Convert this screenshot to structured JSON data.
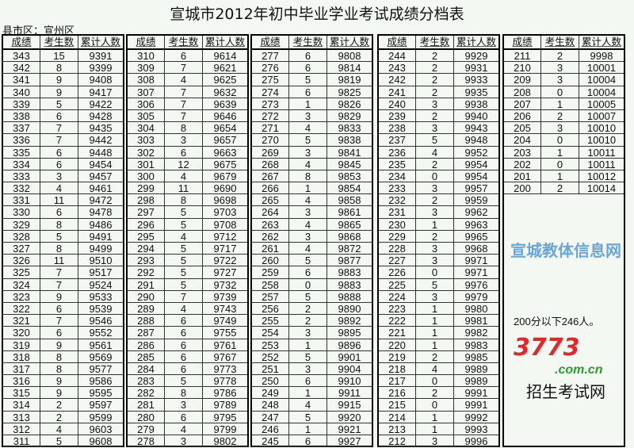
{
  "title": "宣城市2012年初中毕业学业考试成绩分档表",
  "region": "县市区：宣州区",
  "headers": [
    "成绩",
    "考生数",
    "累计人数"
  ],
  "note": "200分以下246人。",
  "watermark": "宣城教体信息网",
  "logo": {
    "number": "3773",
    "domain": ".com.cn",
    "subtitle": "招生考试网"
  },
  "groups": [
    {
      "rows": [
        [
          "343",
          "15",
          "9391"
        ],
        [
          "342",
          "8",
          "9399"
        ],
        [
          "341",
          "9",
          "9408"
        ],
        [
          "340",
          "9",
          "9417"
        ],
        [
          "339",
          "5",
          "9422"
        ],
        [
          "338",
          "6",
          "9428"
        ],
        [
          "337",
          "7",
          "9435"
        ],
        [
          "336",
          "7",
          "9442"
        ],
        [
          "335",
          "6",
          "9448"
        ],
        [
          "334",
          "6",
          "9454"
        ],
        [
          "333",
          "3",
          "9457"
        ],
        [
          "332",
          "4",
          "9461"
        ],
        [
          "331",
          "11",
          "9472"
        ],
        [
          "330",
          "6",
          "9478"
        ],
        [
          "329",
          "8",
          "9486"
        ],
        [
          "328",
          "5",
          "9491"
        ],
        [
          "327",
          "8",
          "9499"
        ],
        [
          "326",
          "11",
          "9510"
        ],
        [
          "325",
          "7",
          "9517"
        ],
        [
          "324",
          "7",
          "9524"
        ],
        [
          "323",
          "9",
          "9533"
        ],
        [
          "322",
          "6",
          "9539"
        ],
        [
          "321",
          "7",
          "9546"
        ],
        [
          "320",
          "6",
          "9552"
        ],
        [
          "319",
          "9",
          "9561"
        ],
        [
          "318",
          "8",
          "9569"
        ],
        [
          "317",
          "8",
          "9577"
        ],
        [
          "316",
          "9",
          "9586"
        ],
        [
          "315",
          "9",
          "9595"
        ],
        [
          "314",
          "2",
          "9597"
        ],
        [
          "313",
          "2",
          "9599"
        ],
        [
          "312",
          "4",
          "9603"
        ],
        [
          "311",
          "5",
          "9608"
        ]
      ]
    },
    {
      "rows": [
        [
          "310",
          "6",
          "9614"
        ],
        [
          "309",
          "7",
          "9621"
        ],
        [
          "308",
          "4",
          "9625"
        ],
        [
          "307",
          "7",
          "9632"
        ],
        [
          "306",
          "7",
          "9639"
        ],
        [
          "305",
          "7",
          "9646"
        ],
        [
          "304",
          "8",
          "9654"
        ],
        [
          "303",
          "3",
          "9657"
        ],
        [
          "302",
          "6",
          "9663"
        ],
        [
          "301",
          "12",
          "9675"
        ],
        [
          "300",
          "4",
          "9679"
        ],
        [
          "299",
          "11",
          "9690"
        ],
        [
          "298",
          "8",
          "9698"
        ],
        [
          "297",
          "5",
          "9703"
        ],
        [
          "296",
          "5",
          "9708"
        ],
        [
          "295",
          "4",
          "9712"
        ],
        [
          "294",
          "5",
          "9717"
        ],
        [
          "293",
          "5",
          "9722"
        ],
        [
          "292",
          "5",
          "9727"
        ],
        [
          "291",
          "5",
          "9732"
        ],
        [
          "290",
          "7",
          "9739"
        ],
        [
          "289",
          "4",
          "9743"
        ],
        [
          "288",
          "6",
          "9749"
        ],
        [
          "287",
          "6",
          "9755"
        ],
        [
          "286",
          "6",
          "9761"
        ],
        [
          "285",
          "6",
          "9767"
        ],
        [
          "284",
          "6",
          "9773"
        ],
        [
          "283",
          "5",
          "9778"
        ],
        [
          "282",
          "8",
          "9786"
        ],
        [
          "281",
          "3",
          "9789"
        ],
        [
          "280",
          "6",
          "9795"
        ],
        [
          "279",
          "4",
          "9799"
        ],
        [
          "278",
          "3",
          "9802"
        ]
      ]
    },
    {
      "rows": [
        [
          "277",
          "6",
          "9808"
        ],
        [
          "276",
          "6",
          "9814"
        ],
        [
          "275",
          "5",
          "9819"
        ],
        [
          "274",
          "6",
          "9825"
        ],
        [
          "273",
          "1",
          "9826"
        ],
        [
          "272",
          "3",
          "9829"
        ],
        [
          "271",
          "4",
          "9833"
        ],
        [
          "270",
          "5",
          "9838"
        ],
        [
          "269",
          "3",
          "9841"
        ],
        [
          "268",
          "4",
          "9845"
        ],
        [
          "267",
          "8",
          "9853"
        ],
        [
          "266",
          "1",
          "9854"
        ],
        [
          "265",
          "4",
          "9858"
        ],
        [
          "264",
          "3",
          "9861"
        ],
        [
          "263",
          "4",
          "9865"
        ],
        [
          "262",
          "3",
          "9868"
        ],
        [
          "261",
          "4",
          "9872"
        ],
        [
          "260",
          "5",
          "9877"
        ],
        [
          "259",
          "6",
          "9883"
        ],
        [
          "258",
          "0",
          "9883"
        ],
        [
          "257",
          "5",
          "9888"
        ],
        [
          "256",
          "2",
          "9890"
        ],
        [
          "255",
          "2",
          "9892"
        ],
        [
          "254",
          "3",
          "9895"
        ],
        [
          "253",
          "1",
          "9896"
        ],
        [
          "252",
          "5",
          "9901"
        ],
        [
          "251",
          "3",
          "9904"
        ],
        [
          "250",
          "6",
          "9910"
        ],
        [
          "249",
          "1",
          "9911"
        ],
        [
          "248",
          "4",
          "9915"
        ],
        [
          "247",
          "5",
          "9920"
        ],
        [
          "246",
          "1",
          "9921"
        ],
        [
          "245",
          "6",
          "9927"
        ]
      ]
    },
    {
      "rows": [
        [
          "244",
          "2",
          "9929"
        ],
        [
          "243",
          "2",
          "9931"
        ],
        [
          "242",
          "2",
          "9933"
        ],
        [
          "241",
          "2",
          "9935"
        ],
        [
          "240",
          "3",
          "9938"
        ],
        [
          "239",
          "2",
          "9940"
        ],
        [
          "238",
          "3",
          "9943"
        ],
        [
          "237",
          "5",
          "9948"
        ],
        [
          "236",
          "4",
          "9952"
        ],
        [
          "235",
          "2",
          "9954"
        ],
        [
          "234",
          "0",
          "9954"
        ],
        [
          "233",
          "3",
          "9957"
        ],
        [
          "232",
          "2",
          "9959"
        ],
        [
          "231",
          "3",
          "9962"
        ],
        [
          "230",
          "1",
          "9963"
        ],
        [
          "229",
          "2",
          "9965"
        ],
        [
          "228",
          "3",
          "9968"
        ],
        [
          "227",
          "3",
          "9971"
        ],
        [
          "226",
          "0",
          "9971"
        ],
        [
          "225",
          "5",
          "9976"
        ],
        [
          "224",
          "3",
          "9979"
        ],
        [
          "223",
          "1",
          "9980"
        ],
        [
          "222",
          "1",
          "9981"
        ],
        [
          "221",
          "1",
          "9982"
        ],
        [
          "220",
          "1",
          "9983"
        ],
        [
          "219",
          "2",
          "9985"
        ],
        [
          "218",
          "4",
          "9989"
        ],
        [
          "217",
          "0",
          "9989"
        ],
        [
          "216",
          "2",
          "9991"
        ],
        [
          "215",
          "0",
          "9991"
        ],
        [
          "214",
          "1",
          "9992"
        ],
        [
          "213",
          "1",
          "9993"
        ],
        [
          "212",
          "3",
          "9996"
        ]
      ]
    },
    {
      "rows": [
        [
          "211",
          "2",
          "9998"
        ],
        [
          "210",
          "3",
          "10001"
        ],
        [
          "209",
          "3",
          "10004"
        ],
        [
          "208",
          "0",
          "10004"
        ],
        [
          "207",
          "1",
          "10005"
        ],
        [
          "206",
          "2",
          "10007"
        ],
        [
          "205",
          "3",
          "10010"
        ],
        [
          "204",
          "0",
          "10010"
        ],
        [
          "203",
          "1",
          "10011"
        ],
        [
          "202",
          "0",
          "10011"
        ],
        [
          "201",
          "1",
          "10012"
        ],
        [
          "200",
          "2",
          "10014"
        ]
      ]
    }
  ]
}
